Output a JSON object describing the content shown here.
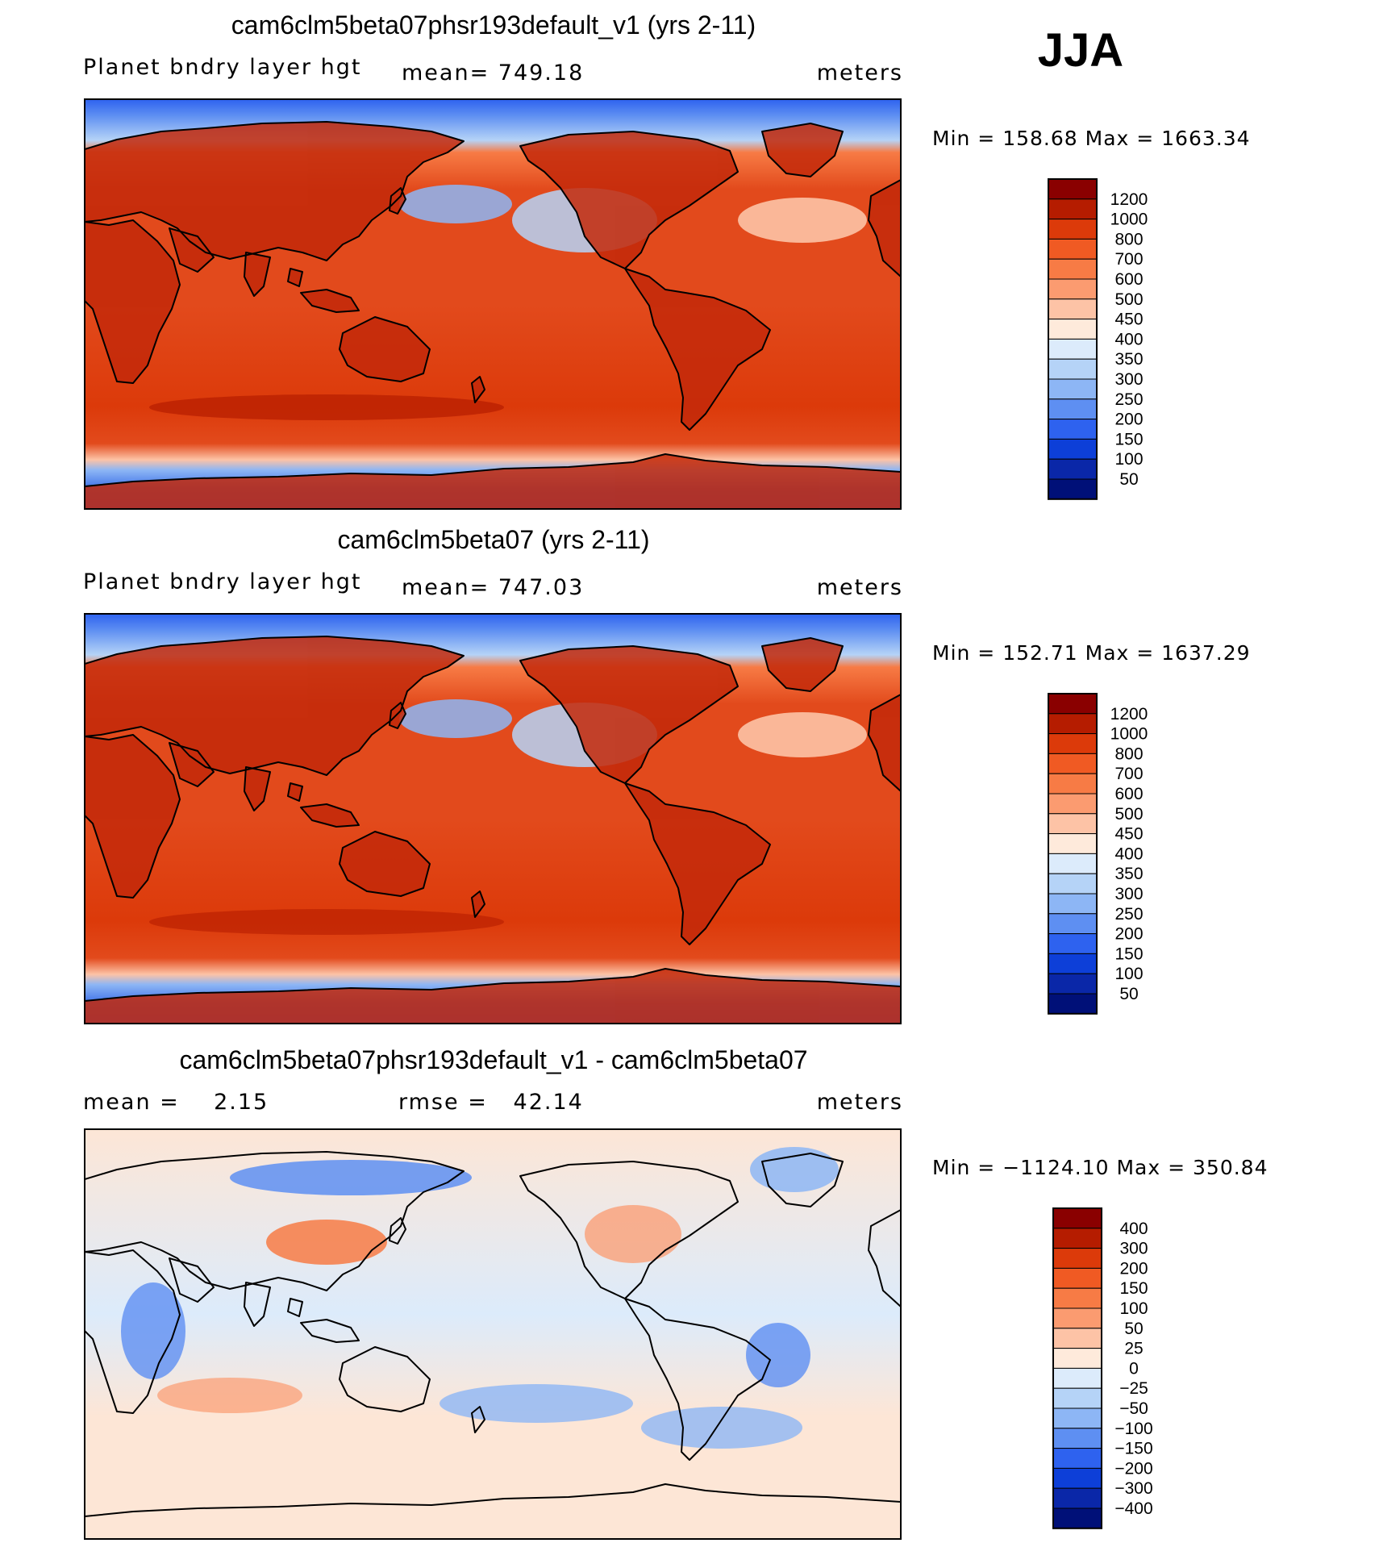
{
  "season": "JJA",
  "panels": [
    {
      "id": "test",
      "title": "cam6clm5beta07phsr193default_v1 (yrs 2-11)",
      "left_label": "Planet bndry layer hgt",
      "mid_label": "mean= 749.18",
      "units": "meters",
      "minmax": "Min = 158.68 Max = 1663.34",
      "kind": "absolute"
    },
    {
      "id": "control",
      "title": "cam6clm5beta07 (yrs 2-11)",
      "left_label": "Planet bndry layer hgt",
      "mid_label": "mean= 747.03",
      "units": "meters",
      "minmax": "Min = 152.71 Max = 1637.29",
      "kind": "absolute"
    },
    {
      "id": "difference",
      "title": "cam6clm5beta07phsr193default_v1 - cam6clm5beta07",
      "left_label": "mean =    2.15",
      "mid_label": "rmse =   42.14",
      "units": "meters",
      "minmax": "Min = −1124.10 Max = 350.84",
      "kind": "difference"
    }
  ],
  "colorbars": {
    "absolute": {
      "ticks": [
        "1200",
        "1000",
        "800",
        "700",
        "600",
        "500",
        "450",
        "400",
        "350",
        "300",
        "250",
        "200",
        "150",
        "100",
        "50"
      ],
      "colors": [
        "#8a0000",
        "#b51c00",
        "#dc3a0a",
        "#f05a23",
        "#f77b45",
        "#fb9b70",
        "#fdc3a6",
        "#feeadb",
        "#dcebfb",
        "#b5d3f7",
        "#8db6f5",
        "#5e8ff2",
        "#2e62ef",
        "#0d3fd8",
        "#0a27a8",
        "#001078"
      ]
    },
    "difference": {
      "ticks": [
        "400",
        "300",
        "200",
        "150",
        "100",
        "50",
        "25",
        "0",
        "−25",
        "−50",
        "−100",
        "−150",
        "−200",
        "−300",
        "−400"
      ],
      "colors": [
        "#8a0000",
        "#b51c00",
        "#dc3a0a",
        "#f05a23",
        "#f77b45",
        "#fb9b70",
        "#fdc3a6",
        "#feeadb",
        "#dcebfb",
        "#b5d3f7",
        "#8db6f5",
        "#5e8ff2",
        "#2e62ef",
        "#0d3fd8",
        "#0a27a8",
        "#001078"
      ]
    }
  },
  "palette": {
    "polar_blue": "#3f72e8",
    "ocean_red": "#e24a1c",
    "land_dark": "#c3290a",
    "diff_neutral": "#fde6d6",
    "diff_light_blue": "#d8e7fa"
  }
}
